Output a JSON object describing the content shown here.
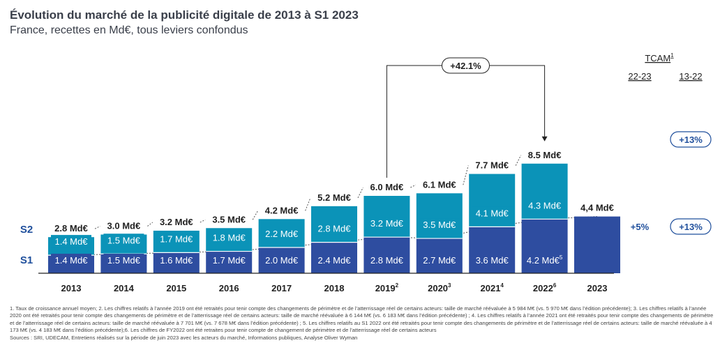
{
  "header": {
    "title": "Évolution du marché de la publicité digitale de 2013 à S1 2023",
    "subtitle": "France, recettes en Md€, tous leviers confondus"
  },
  "colors": {
    "s1": "#2e4da0",
    "s2": "#0b93b8",
    "accent": "#1f4f9c",
    "text": "#222222"
  },
  "labels": {
    "s1": "S1",
    "s2": "S2"
  },
  "tcam": {
    "header": "TCAM",
    "header_sup": "1",
    "col1": "22-23",
    "col2": "13-22",
    "total_13_22": "+13%",
    "s1_22_23": "+5%",
    "s1_13_22": "+13%"
  },
  "growth_callout": "+42.1%",
  "chart_data": {
    "type": "bar",
    "stacked": true,
    "categories": [
      "2013",
      "2014",
      "2015",
      "2016",
      "2017",
      "2018",
      "2019",
      "2020",
      "2021",
      "2022",
      "2023"
    ],
    "category_sups": [
      "",
      "",
      "",
      "",
      "",
      "",
      "2",
      "3",
      "4",
      "6",
      ""
    ],
    "series": [
      {
        "name": "S1",
        "values": [
          1.4,
          1.5,
          1.6,
          1.7,
          2.0,
          2.4,
          2.8,
          2.7,
          3.6,
          4.2,
          4.4
        ],
        "labels": [
          "1.4 Md€",
          "1.5 Md€",
          "1.6 Md€",
          "1.7 Md€",
          "2.0 Md€",
          "2.4 Md€",
          "2.8 Md€",
          "2.7 Md€",
          "3.6 Md€",
          "4.2 Md€",
          ""
        ],
        "label_sups": [
          "",
          "",
          "",
          "",
          "",
          "",
          "",
          "",
          "",
          "5",
          ""
        ]
      },
      {
        "name": "S2",
        "values": [
          1.4,
          1.5,
          1.7,
          1.8,
          2.2,
          2.8,
          3.2,
          3.5,
          4.1,
          4.3,
          0
        ],
        "labels": [
          "1.4 Md€",
          "1.5 Md€",
          "1.7 Md€",
          "1.8 Md€",
          "2.2 Md€",
          "2.8 Md€",
          "3.2 Md€",
          "3.5 Md€",
          "4.1 Md€",
          "4.3 Md€",
          ""
        ],
        "label_sups": [
          "",
          "",
          "",
          "",
          "",
          "",
          "",
          "",
          "",
          "",
          ""
        ]
      }
    ],
    "totals": [
      "2.8 Md€",
      "3.0 Md€",
      "3.2 Md€",
      "3.5 Md€",
      "4.2 Md€",
      "5.2 Md€",
      "6.0 Md€",
      "6.1 Md€",
      "7.7 Md€",
      "8.5 Md€",
      "4,4 Md€"
    ],
    "ylim": [
      0,
      8.5
    ],
    "grid": false,
    "legend": "left"
  },
  "footnotes": [
    "1. Taux de croissance annuel moyen; 2. Les chiffres relatifs à l’année 2019 ont été retraités pour tenir compte des changements de périmètre et de l’atterrissage réel de certains acteurs: taille de marché réévaluée à 5 984 M€ (vs. 5 970 M€ dans l’édition précédente); 3. Les chiffres relatifs à l’année 2020 ont été retraités pour tenir compte des changements de périmètre et de l’atterrissage réel de certains acteurs: taille de marché réévaluée à 6 144 M€ (vs. 6 183 M€ dans l’édition précédente) ; 4. Les chiffres relatifs à l’année 2021 ont été retraités pour tenir compte des changements de périmètre et de l’atterrissage réel de certains acteurs: taille de marché réévaluée à 7 701 M€ (vs. 7 678 M€ dans l’édition précédente) ; 5. Les chiffres relatifs au S1 2022 ont été retraités pour tenir compte des changements de périmètre et de l’atterrissage réel de certains acteurs: taille de marché réévaluée à 4 173 M€ (vs. 4 183 M€ dans l’édition précédente);6. Les chiffres de FY2022 ont été retraites pour tenir compte de changement de périmètre et de l’atterrissage réel de certains acteurs",
    "Sources : SRI, UDECAM, Entretiens réalisés sur la période de juin 2023 avec les acteurs du marché, Informations publiques, Analyse Oliver Wyman"
  ]
}
